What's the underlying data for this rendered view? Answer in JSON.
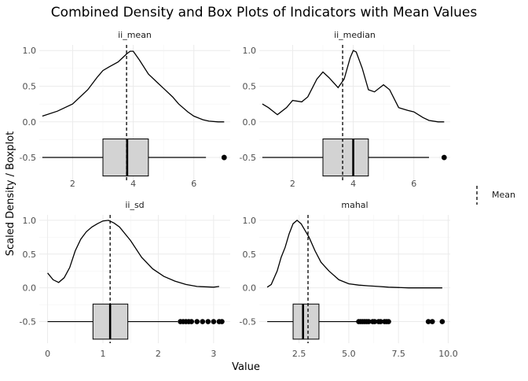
{
  "title": "Combined Density and Box Plots of Indicators with Mean Values",
  "xlabel": "Value",
  "ylabel": "Scaled Density / Boxplot",
  "legend": {
    "label": "Mean",
    "placement": "right"
  },
  "chart_data": [
    {
      "type": "density+boxplot",
      "title": "ii_mean",
      "xlim": [
        0.9,
        7.2
      ],
      "ylim": [
        -0.82,
        1.08
      ],
      "xticks": [
        2,
        4,
        6
      ],
      "yticks": [
        -0.5,
        0.0,
        0.5,
        1.0
      ],
      "mean": 3.78,
      "density": {
        "x": [
          1.0,
          1.5,
          2.0,
          2.5,
          2.8,
          3.0,
          3.2,
          3.5,
          3.7,
          3.8,
          3.9,
          4.0,
          4.2,
          4.5,
          4.8,
          5.0,
          5.3,
          5.5,
          5.8,
          6.0,
          6.3,
          6.5,
          6.8,
          7.0
        ],
        "y": [
          0.08,
          0.15,
          0.25,
          0.45,
          0.62,
          0.72,
          0.77,
          0.84,
          0.92,
          0.96,
          0.99,
          0.99,
          0.87,
          0.67,
          0.55,
          0.47,
          0.35,
          0.25,
          0.14,
          0.08,
          0.03,
          0.01,
          0.0,
          0.0
        ]
      },
      "boxplot": {
        "whisker_low": 1.0,
        "q1": 3.0,
        "median": 3.8,
        "q3": 4.5,
        "whisker_high": 6.4,
        "outliers": [
          7.0,
          7.0,
          7.0
        ]
      }
    },
    {
      "type": "density+boxplot",
      "title": "ii_median",
      "xlim": [
        0.9,
        7.2
      ],
      "ylim": [
        -0.82,
        1.08
      ],
      "xticks": [
        2,
        4,
        6
      ],
      "yticks": [
        -0.5,
        0.0,
        0.5,
        1.0
      ],
      "mean": 3.65,
      "density": {
        "x": [
          1.0,
          1.2,
          1.5,
          1.8,
          2.0,
          2.3,
          2.5,
          2.8,
          3.0,
          3.2,
          3.5,
          3.7,
          3.9,
          4.0,
          4.1,
          4.3,
          4.5,
          4.7,
          5.0,
          5.2,
          5.5,
          5.8,
          6.0,
          6.3,
          6.5,
          6.8,
          7.0
        ],
        "y": [
          0.25,
          0.2,
          0.1,
          0.2,
          0.3,
          0.28,
          0.35,
          0.6,
          0.7,
          0.62,
          0.48,
          0.6,
          0.9,
          1.0,
          0.98,
          0.75,
          0.45,
          0.42,
          0.52,
          0.45,
          0.2,
          0.16,
          0.14,
          0.06,
          0.02,
          0.0,
          0.0
        ]
      },
      "boxplot": {
        "whisker_low": 1.0,
        "q1": 3.0,
        "median": 4.0,
        "q3": 4.5,
        "whisker_high": 6.5,
        "outliers": [
          7.0,
          7.0
        ]
      }
    },
    {
      "type": "density+boxplot",
      "title": "ii_sd",
      "xlim": [
        -0.15,
        3.3
      ],
      "ylim": [
        -0.82,
        1.08
      ],
      "xticks": [
        0,
        1,
        2,
        3
      ],
      "yticks": [
        -0.5,
        0.0,
        0.5,
        1.0
      ],
      "mean": 1.13,
      "density": {
        "x": [
          0.0,
          0.1,
          0.2,
          0.3,
          0.4,
          0.5,
          0.6,
          0.7,
          0.8,
          0.9,
          1.0,
          1.1,
          1.2,
          1.3,
          1.5,
          1.7,
          1.9,
          2.1,
          2.3,
          2.5,
          2.7,
          3.0,
          3.1
        ],
        "y": [
          0.22,
          0.12,
          0.08,
          0.15,
          0.3,
          0.55,
          0.72,
          0.83,
          0.9,
          0.95,
          0.99,
          1.0,
          0.96,
          0.9,
          0.7,
          0.45,
          0.28,
          0.17,
          0.1,
          0.05,
          0.02,
          0.01,
          0.02
        ]
      },
      "boxplot": {
        "whisker_low": 0.0,
        "q1": 0.82,
        "median": 1.13,
        "q3": 1.45,
        "whisker_high": 2.35,
        "outliers": [
          2.4,
          2.45,
          2.5,
          2.55,
          2.6,
          2.7,
          2.8,
          2.9,
          3.0,
          3.1,
          3.15
        ]
      }
    },
    {
      "type": "density+boxplot",
      "title": "mahal",
      "xlim": [
        0.5,
        10.1
      ],
      "ylim": [
        -0.82,
        1.08
      ],
      "xticks": [
        2.5,
        5.0,
        7.5,
        10.0
      ],
      "yticks": [
        -0.5,
        0.0,
        0.5,
        1.0
      ],
      "mean": 2.95,
      "density": {
        "x": [
          0.9,
          1.1,
          1.4,
          1.6,
          1.8,
          2.0,
          2.2,
          2.4,
          2.6,
          2.8,
          3.0,
          3.3,
          3.6,
          4.0,
          4.5,
          5.0,
          5.5,
          6.0,
          6.5,
          7.0,
          8.0,
          9.0,
          9.7
        ],
        "y": [
          0.01,
          0.05,
          0.25,
          0.45,
          0.6,
          0.8,
          0.95,
          1.0,
          0.95,
          0.85,
          0.75,
          0.55,
          0.38,
          0.25,
          0.12,
          0.06,
          0.04,
          0.03,
          0.02,
          0.01,
          0.0,
          0.0,
          0.0
        ]
      },
      "boxplot": {
        "whisker_low": 0.9,
        "q1": 2.2,
        "median": 2.7,
        "q3": 3.5,
        "whisker_high": 5.4,
        "outliers": [
          5.5,
          5.6,
          5.7,
          5.8,
          5.9,
          6.0,
          6.2,
          6.3,
          6.5,
          6.6,
          6.8,
          6.9,
          7.0,
          9.0,
          9.2,
          9.7
        ]
      }
    }
  ]
}
